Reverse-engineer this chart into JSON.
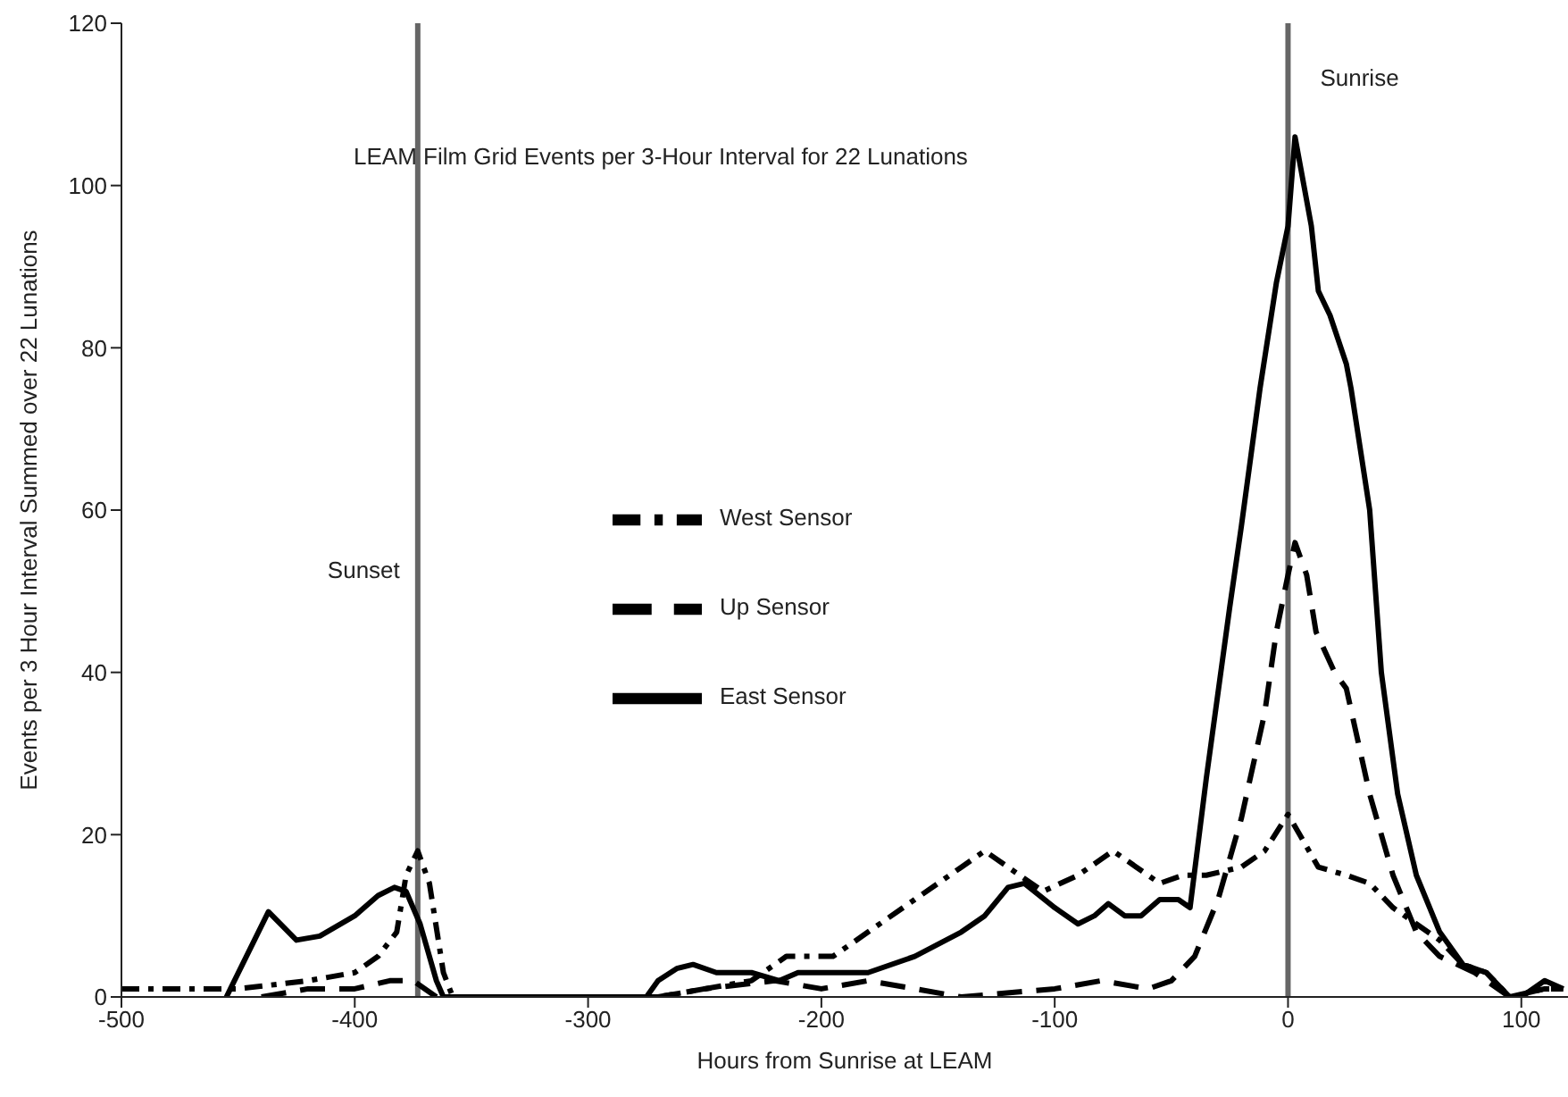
{
  "chart_data": {
    "type": "line",
    "title": "LEAM Film Grid Events per 3-Hour Interval for 22 Lunations",
    "xlabel": "Hours from Sunrise at LEAM",
    "ylabel": "Events per 3 Hour Interval Summed over 22 Lunations",
    "xlim": [
      -500,
      120
    ],
    "xticks": [
      -500,
      -400,
      -300,
      -200,
      -100,
      0,
      100
    ],
    "ylim": [
      0,
      120
    ],
    "yticks": [
      0,
      20,
      40,
      60,
      80,
      100,
      120
    ],
    "legend": "center",
    "marker": "none",
    "series": [
      {
        "name": "West Sensor",
        "color": "#000000",
        "line_style": "dotted",
        "x": [
          -500,
          -450,
          -420,
          -400,
          -390,
          -382,
          -378,
          -373,
          -368,
          -362,
          -358,
          -300,
          -270,
          -250,
          -230,
          -215,
          -205,
          -195,
          -180,
          -160,
          -140,
          -130,
          -120,
          -105,
          -90,
          -75,
          -65,
          -55,
          -45,
          -35,
          -20,
          -10,
          0,
          5,
          13,
          25,
          35,
          45,
          55,
          65,
          75,
          85,
          95,
          110,
          118
        ],
        "values": [
          1,
          1,
          2,
          3,
          5,
          8,
          15,
          18,
          14,
          3,
          0,
          0,
          0,
          1,
          2,
          5,
          5,
          5,
          8,
          12,
          16,
          18,
          16,
          13,
          15,
          18,
          16,
          14,
          15,
          15,
          16,
          18,
          22.5,
          20,
          16,
          15,
          14,
          11,
          9,
          7,
          4,
          3,
          0,
          1,
          1
        ]
      },
      {
        "name": "Up Sensor",
        "color": "#000000",
        "line_style": "dashed",
        "x": [
          -440,
          -420,
          -400,
          -385,
          -375,
          -365,
          -270,
          -250,
          -220,
          -200,
          -180,
          -160,
          -140,
          -100,
          -80,
          -60,
          -50,
          -40,
          -30,
          -20,
          -10,
          -5,
          0,
          3,
          8,
          12,
          20,
          25,
          35,
          45,
          55,
          65,
          80,
          95,
          110,
          118
        ],
        "values": [
          0,
          1,
          1,
          2,
          2,
          0,
          0,
          1,
          2,
          1,
          2,
          1,
          0,
          1,
          2,
          1,
          2,
          5,
          12,
          22,
          35,
          45,
          52,
          56,
          52,
          45,
          40,
          38,
          25,
          15,
          8,
          5,
          3,
          0,
          1,
          1
        ]
      },
      {
        "name": "East Sensor",
        "color": "#000000",
        "line_style": "solid",
        "x": [
          -455,
          -437,
          -425,
          -415,
          -400,
          -390,
          -383,
          -378,
          -372,
          -365,
          -362,
          -275,
          -270,
          -262,
          -255,
          -245,
          -230,
          -218,
          -210,
          -195,
          -180,
          -160,
          -140,
          -130,
          -120,
          -113,
          -100,
          -90,
          -83,
          -77,
          -70,
          -63,
          -55,
          -47,
          -42,
          -35,
          -25,
          -20,
          -12,
          -5,
          0,
          3,
          10,
          13,
          18,
          25,
          27,
          35,
          40,
          47,
          55,
          65,
          75,
          85,
          95,
          100,
          110,
          118
        ],
        "values": [
          0,
          10.5,
          7,
          7.5,
          10,
          12.5,
          13.5,
          13,
          9,
          2,
          0,
          0,
          2,
          3.5,
          4,
          3,
          3,
          2,
          3,
          3,
          3,
          5,
          8,
          10,
          13.5,
          14,
          11,
          9,
          10,
          11.5,
          10,
          10,
          12,
          12,
          11,
          27,
          48,
          58,
          75,
          88,
          95,
          106,
          95,
          87,
          84,
          78,
          75,
          60,
          40,
          25,
          15,
          8,
          4,
          3,
          0,
          0,
          2,
          1
        ]
      }
    ],
    "ref_lines": [
      {
        "axis": "x",
        "value": -373,
        "label": "Sunset",
        "color": "#666666"
      },
      {
        "axis": "x",
        "value": 0,
        "label": "Sunrise",
        "color": "#666666"
      }
    ]
  }
}
